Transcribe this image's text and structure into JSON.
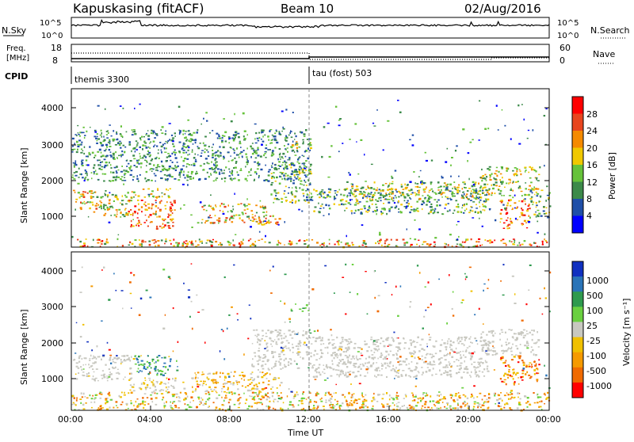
{
  "header": {
    "station": "Kapuskasing (fitACF)",
    "beam": "Beam 10",
    "date": "02/Aug/2016"
  },
  "nsky_panel": {
    "label": "N.Sky",
    "tick_top": "10^5",
    "tick_bottom": "10^0",
    "right_label": "N.Search",
    "right_tick_top": "10^5",
    "right_tick_bottom": "10^0"
  },
  "freq_panel": {
    "label_line1": "Freq.",
    "label_line2": "[MHz]",
    "tick_top": "18",
    "tick_bottom": "8",
    "right_label": "Nave",
    "right_tick_top": "60",
    "right_tick_bottom": "0"
  },
  "cpid_panel": {
    "label": "CPID",
    "mode1": "themis 3300",
    "mode2": "tau (fost) 503"
  },
  "power_panel": {
    "ylabel": "Slant Range [km]",
    "yticks": [
      "1000",
      "2000",
      "3000",
      "4000"
    ],
    "colorbar_label": "Power [dB]",
    "colorbar_ticks": [
      "4",
      "8",
      "12",
      "16",
      "20",
      "24",
      "28"
    ]
  },
  "velocity_panel": {
    "ylabel": "Slant Range [km]",
    "yticks": [
      "1000",
      "2000",
      "3000",
      "4000"
    ],
    "colorbar_label": "Velocity [m s⁻¹]",
    "colorbar_ticks": [
      "1000",
      "500",
      "100",
      "25",
      "-25",
      "-100",
      "-500",
      "-1000"
    ]
  },
  "xaxis": {
    "label": "Time UT",
    "ticks": [
      "00:00",
      "04:00",
      "08:00",
      "12:00",
      "16:00",
      "20:00",
      "00:00"
    ]
  },
  "chart_data": {
    "type": "heatmap",
    "x_range_hours": [
      0,
      24
    ],
    "y_range_km": [
      180,
      4500
    ],
    "mode_change_hour": 12,
    "power_colors": [
      "#0000ff",
      "#1f4fa8",
      "#3c8a4a",
      "#66c23a",
      "#f0c800",
      "#f58a00",
      "#e8451e",
      "#ff0000"
    ],
    "velocity_colors": [
      "#1030c0",
      "#2a74b8",
      "#2e9a4e",
      "#6ad040",
      "#c8c8c0",
      "#f0c000",
      "#f59a00",
      "#f06a00",
      "#ff0000"
    ],
    "power_scatter_regions": [
      {
        "t": [
          0.0,
          1.8
        ],
        "r": [
          1150,
          1750
        ],
        "c": [
          2,
          6
        ]
      },
      {
        "t": [
          1.6,
          3.0
        ],
        "r": [
          1000,
          1700
        ],
        "c": [
          2,
          5
        ]
      },
      {
        "t": [
          2.8,
          5.2
        ],
        "r": [
          700,
          1500
        ],
        "c": [
          4,
          7
        ]
      },
      {
        "t": [
          3.0,
          5.0
        ],
        "r": [
          1550,
          1800
        ],
        "c": [
          2,
          5
        ]
      },
      {
        "t": [
          6.5,
          9.8
        ],
        "r": [
          850,
          1400
        ],
        "c": [
          2,
          6
        ]
      },
      {
        "t": [
          9.0,
          10.5
        ],
        "r": [
          800,
          1100
        ],
        "c": [
          3,
          6
        ]
      },
      {
        "t": [
          10.0,
          12.0
        ],
        "r": [
          1400,
          2500
        ],
        "c": [
          1,
          4
        ]
      },
      {
        "t": [
          12.0,
          21.0
        ],
        "r": [
          1100,
          1800
        ],
        "c": [
          1,
          4
        ]
      },
      {
        "t": [
          14.0,
          20.5
        ],
        "r": [
          1500,
          2000
        ],
        "c": [
          2,
          5
        ]
      },
      {
        "t": [
          20.5,
          23.5
        ],
        "r": [
          1600,
          2400
        ],
        "c": [
          2,
          5
        ]
      },
      {
        "t": [
          21.5,
          23.0
        ],
        "r": [
          700,
          1500
        ],
        "c": [
          4,
          7
        ]
      },
      {
        "t": [
          23.0,
          24.0
        ],
        "r": [
          1000,
          1800
        ],
        "c": [
          1,
          4
        ]
      },
      {
        "t": [
          0.0,
          24.0
        ],
        "r": [
          200,
          420
        ],
        "c": [
          2,
          7
        ]
      },
      {
        "t": [
          0.0,
          12.0
        ],
        "r": [
          2000,
          3400
        ],
        "c": [
          1,
          3
        ]
      },
      {
        "t": [
          11.0,
          12.0
        ],
        "r": [
          2900,
          3100
        ],
        "c": [
          2,
          6
        ]
      },
      {
        "t": [
          0.0,
          24.0
        ],
        "r": [
          400,
          4200
        ],
        "c": [
          0,
          3
        ]
      }
    ],
    "velocity_scatter_regions": [
      {
        "t": [
          0.0,
          3.0
        ],
        "r": [
          1000,
          1700
        ],
        "c": [
          4,
          4
        ]
      },
      {
        "t": [
          3.0,
          5.0
        ],
        "r": [
          1150,
          1700
        ],
        "c": [
          1,
          3
        ]
      },
      {
        "t": [
          2.8,
          5.2
        ],
        "r": [
          700,
          1100
        ],
        "c": [
          4,
          5
        ]
      },
      {
        "t": [
          6.0,
          10.5
        ],
        "r": [
          700,
          1250
        ],
        "c": [
          4,
          6
        ]
      },
      {
        "t": [
          9.0,
          12.0
        ],
        "r": [
          1300,
          2400
        ],
        "c": [
          4,
          4
        ]
      },
      {
        "t": [
          12.0,
          21.0
        ],
        "r": [
          1100,
          2200
        ],
        "c": [
          4,
          4
        ]
      },
      {
        "t": [
          20.5,
          23.5
        ],
        "r": [
          1700,
          2400
        ],
        "c": [
          4,
          4
        ]
      },
      {
        "t": [
          21.5,
          23.5
        ],
        "r": [
          900,
          1700
        ],
        "c": [
          5,
          8
        ]
      },
      {
        "t": [
          0.0,
          24.0
        ],
        "r": [
          200,
          700
        ],
        "c": [
          3,
          7
        ]
      },
      {
        "t": [
          11.0,
          12.0
        ],
        "r": [
          2900,
          3100
        ],
        "c": [
          2,
          3
        ]
      },
      {
        "t": [
          0.0,
          24.0
        ],
        "r": [
          400,
          4200
        ],
        "c": [
          0,
          8
        ]
      }
    ]
  }
}
